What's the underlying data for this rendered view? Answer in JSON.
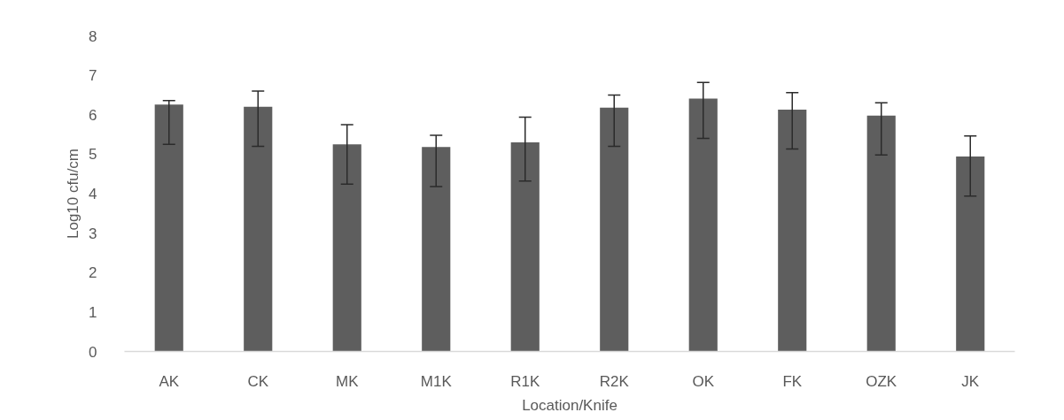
{
  "chart_data": {
    "type": "bar",
    "xlabel": "Location/Knife",
    "ylabel": "Log10 cfu/cm",
    "categories": [
      "AK",
      "CK",
      "MK",
      "M1K",
      "R1K",
      "R2K",
      "OK",
      "FK",
      "OZK",
      "JK"
    ],
    "values": [
      6.26,
      6.2,
      5.25,
      5.18,
      5.3,
      6.18,
      6.41,
      6.13,
      5.98,
      4.94
    ],
    "errors": [
      [
        5.25,
        6.36
      ],
      [
        5.2,
        6.6
      ],
      [
        4.24,
        5.75
      ],
      [
        4.18,
        5.48
      ],
      [
        4.32,
        5.94
      ],
      [
        5.2,
        6.5
      ],
      [
        5.4,
        6.82
      ],
      [
        5.13,
        6.56
      ],
      [
        4.98,
        6.3
      ],
      [
        3.94,
        5.46
      ]
    ],
    "color": "#5e5e5e",
    "ylim": [
      0,
      8
    ],
    "yticks": [
      0,
      1,
      2,
      3,
      4,
      5,
      6,
      7,
      8
    ],
    "grid": false
  }
}
